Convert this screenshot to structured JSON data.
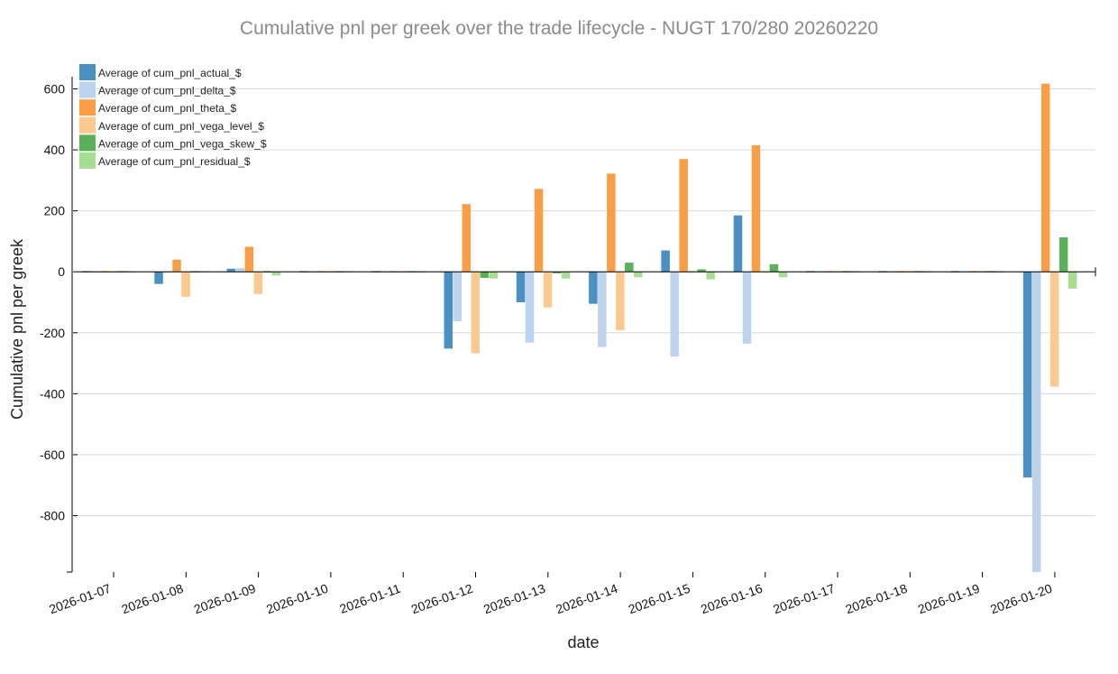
{
  "chart_data": {
    "type": "bar",
    "title": "Cumulative pnl per greek over the trade lifecycle - NUGT 170/280 20260220",
    "xlabel": "date",
    "ylabel": "Cumulative pnl per greek",
    "ylim": [
      -985,
      640
    ],
    "yticks": [
      600,
      400,
      200,
      0,
      -200,
      -400,
      -600,
      -800
    ],
    "ytick_labels": [
      "600",
      "400",
      "200",
      "0",
      "-200",
      "-400",
      "-600",
      "-800"
    ],
    "grid": true,
    "legend_position": "top-left",
    "categories": [
      "2026-01-07",
      "2026-01-08",
      "2026-01-09",
      "2026-01-10",
      "2026-01-11",
      "2026-01-12",
      "2026-01-13",
      "2026-01-14",
      "2026-01-15",
      "2026-01-16",
      "2026-01-17",
      "2026-01-18",
      "2026-01-19",
      "2026-01-20"
    ],
    "series": [
      {
        "name": "Average of cum_pnl_actual_$",
        "color": "#4a90c2",
        "values": [
          0,
          -40,
          10,
          0,
          0,
          -252,
          -100,
          -105,
          70,
          185,
          0,
          0,
          0,
          -675
        ]
      },
      {
        "name": "Average of cum_pnl_delta_$",
        "color": "#bcd3ee",
        "values": [
          0,
          0,
          12,
          0,
          0,
          -162,
          -232,
          -247,
          -278,
          -236,
          0,
          0,
          0,
          -985
        ]
      },
      {
        "name": "Average of cum_pnl_theta_$",
        "color": "#f89e48",
        "values": [
          0,
          40,
          82,
          0,
          0,
          222,
          272,
          322,
          370,
          415,
          0,
          0,
          0,
          617
        ]
      },
      {
        "name": "Average of cum_pnl_vega_level_$",
        "color": "#fcc990",
        "values": [
          0,
          -82,
          -73,
          0,
          0,
          -267,
          -117,
          -192,
          0,
          0,
          0,
          0,
          0,
          -377
        ]
      },
      {
        "name": "Average of cum_pnl_vega_skew_$",
        "color": "#5bb05a",
        "values": [
          0,
          0,
          0,
          0,
          0,
          -20,
          -5,
          30,
          8,
          25,
          0,
          0,
          0,
          113
        ]
      },
      {
        "name": "Average of cum_pnl_residual_$",
        "color": "#a6de92",
        "values": [
          0,
          0,
          -12,
          0,
          0,
          -22,
          -22,
          -18,
          -25,
          -18,
          0,
          0,
          0,
          -55
        ]
      }
    ]
  }
}
